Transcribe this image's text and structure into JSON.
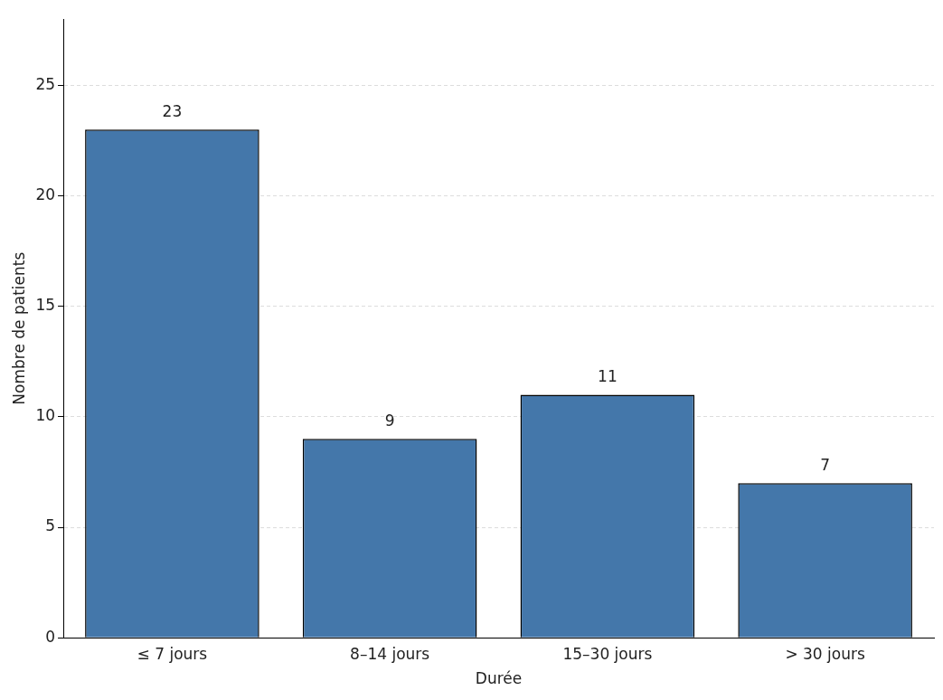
{
  "chart_data": {
    "type": "bar",
    "xlabel": "Durée",
    "ylabel": "Nombre de patients",
    "categories": [
      "≤ 7 jours",
      "8–14 jours",
      "15–30 jours",
      "> 30 jours"
    ],
    "values": [
      23,
      9,
      11,
      7
    ],
    "color": "#4477aa",
    "ylim": [
      0,
      28
    ],
    "yticks": [
      0,
      5,
      10,
      15,
      20,
      25
    ],
    "grid": "y",
    "data_labels": true
  }
}
